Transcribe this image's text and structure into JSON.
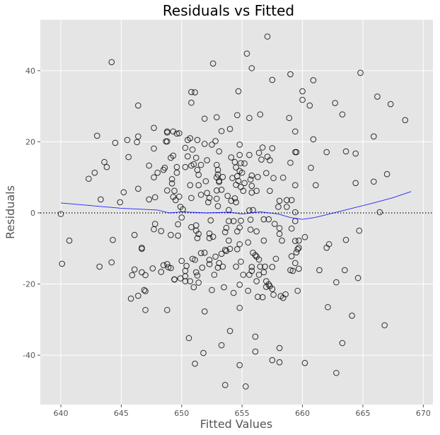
{
  "chart_data": {
    "type": "scatter",
    "title": "Residuals vs Fitted",
    "xlabel": "Fitted Values",
    "ylabel": "Residuals",
    "xlim": [
      638.3,
      670.8
    ],
    "ylim": [
      -53.9,
      54.3
    ],
    "xticks": [
      640,
      645,
      650,
      655,
      660,
      665,
      670
    ],
    "yticks": [
      -40,
      -20,
      0,
      20,
      40
    ],
    "grid": true,
    "colors": {
      "background": "#e5e5e5",
      "grid": "#ffffff",
      "marker_edge": "#000000",
      "smooth_line": "#0000ff",
      "reference_line": "#000000"
    },
    "reference_line": {
      "y": 0,
      "style": "dotted"
    },
    "points": [
      [
        644.2,
        42.4
      ],
      [
        652.6,
        42.0
      ],
      [
        657.1,
        49.6
      ],
      [
        655.4,
        44.8
      ],
      [
        655.8,
        40.7
      ],
      [
        659.0,
        39.0
      ],
      [
        664.8,
        39.4
      ],
      [
        660.9,
        37.3
      ],
      [
        657.5,
        37.4
      ],
      [
        660.0,
        34.2
      ],
      [
        650.8,
        34.0
      ],
      [
        651.1,
        33.9
      ],
      [
        654.7,
        34.2
      ],
      [
        666.2,
        32.7
      ],
      [
        667.3,
        30.6
      ],
      [
        646.4,
        30.2
      ],
      [
        660.0,
        31.8
      ],
      [
        660.6,
        30.2
      ],
      [
        650.8,
        31.0
      ],
      [
        662.7,
        30.9
      ],
      [
        663.3,
        27.7
      ],
      [
        668.5,
        26.1
      ],
      [
        651.9,
        26.5
      ],
      [
        652.9,
        26.9
      ],
      [
        654.6,
        27.5
      ],
      [
        656.5,
        27.7
      ],
      [
        658.9,
        26.7
      ],
      [
        655.6,
        26.7
      ],
      [
        647.7,
        23.9
      ],
      [
        649.3,
        22.9
      ],
      [
        648.8,
        22.9
      ],
      [
        649.6,
        22.3
      ],
      [
        643.0,
        21.7
      ],
      [
        646.4,
        21.5
      ],
      [
        665.9,
        21.5
      ],
      [
        650.5,
        20.5
      ],
      [
        648.8,
        20.1
      ],
      [
        644.5,
        19.7
      ],
      [
        645.5,
        20.5
      ],
      [
        646.3,
        19.9
      ],
      [
        660.9,
        20.7
      ],
      [
        662.0,
        17.1
      ],
      [
        663.6,
        17.3
      ],
      [
        664.4,
        16.7
      ],
      [
        659.4,
        17.1
      ],
      [
        642.8,
        11.3
      ],
      [
        642.3,
        9.6
      ],
      [
        643.8,
        12.9
      ],
      [
        643.6,
        14.3
      ],
      [
        645.6,
        15.7
      ],
      [
        644.9,
        3.0
      ],
      [
        647.3,
        3.8
      ],
      [
        646.4,
        6.8
      ],
      [
        645.2,
        5.8
      ],
      [
        643.3,
        3.8
      ],
      [
        647.7,
        10.0
      ],
      [
        648.5,
        12.1
      ],
      [
        649.6,
        12.9
      ],
      [
        649.3,
        16.1
      ],
      [
        650.3,
        12.9
      ],
      [
        661.1,
        7.8
      ],
      [
        667.0,
        10.9
      ],
      [
        660.7,
        12.7
      ],
      [
        665.9,
        8.8
      ],
      [
        664.4,
        8.4
      ],
      [
        658.1,
        3.4
      ],
      [
        658.7,
        3.6
      ],
      [
        655.8,
        10.5
      ],
      [
        640.0,
        -0.3
      ],
      [
        666.4,
        0.2
      ],
      [
        659.4,
        0.2
      ],
      [
        648.8,
        22.6
      ],
      [
        649.8,
        22.4
      ],
      [
        650.7,
        21.0
      ],
      [
        651.3,
        20.5
      ],
      [
        648.7,
        20.1
      ],
      [
        647.7,
        18.1
      ],
      [
        650.3,
        18.3
      ],
      [
        650.9,
        17.8
      ],
      [
        651.9,
        19.4
      ],
      [
        652.5,
        19.2
      ],
      [
        652.8,
        20.2
      ],
      [
        653.3,
        23.0
      ],
      [
        654.0,
        23.6
      ],
      [
        654.8,
        19.2
      ],
      [
        653.1,
        17.3
      ],
      [
        649.1,
        15.5
      ],
      [
        650.5,
        15.9
      ],
      [
        651.2,
        15.5
      ],
      [
        652.1,
        14.8
      ],
      [
        654.1,
        15.6
      ],
      [
        654.8,
        16.3
      ],
      [
        655.6,
        16.3
      ],
      [
        656.4,
        16.9
      ],
      [
        656.7,
        18.4
      ],
      [
        657.5,
        18.2
      ],
      [
        657.1,
        15.8
      ],
      [
        656.6,
        15.0
      ],
      [
        657.3,
        14.8
      ],
      [
        659.0,
        14.1
      ],
      [
        659.5,
        17.1
      ],
      [
        659.4,
        22.9
      ],
      [
        647.3,
        13.3
      ],
      [
        648.6,
        12.7
      ],
      [
        648.0,
        11.3
      ],
      [
        649.6,
        11.3
      ],
      [
        650.8,
        13.3
      ],
      [
        651.0,
        13.7
      ],
      [
        651.6,
        13.5
      ],
      [
        651.3,
        12.1
      ],
      [
        652.9,
        13.5
      ],
      [
        653.0,
        12.1
      ],
      [
        654.4,
        14.3
      ],
      [
        654.9,
        14.0
      ],
      [
        655.2,
        13.9
      ],
      [
        654.5,
        12.8
      ],
      [
        654.8,
        11.8
      ],
      [
        655.0,
        11.3
      ],
      [
        657.0,
        11.2
      ],
      [
        658.4,
        9.9
      ],
      [
        659.4,
        7.8
      ],
      [
        657.6,
        9.8
      ],
      [
        656.3,
        10.1
      ],
      [
        655.7,
        9.4
      ],
      [
        655.2,
        8.4
      ],
      [
        654.7,
        9.0
      ],
      [
        654.6,
        10.3
      ],
      [
        654.2,
        9.8
      ],
      [
        653.0,
        10.8
      ],
      [
        653.4,
        10.1
      ],
      [
        652.9,
        10.0
      ],
      [
        651.4,
        10.7
      ],
      [
        649.2,
        9.5
      ],
      [
        649.2,
        8.3
      ],
      [
        650.7,
        7.8
      ],
      [
        651.4,
        7.8
      ],
      [
        652.0,
        8.9
      ],
      [
        653.1,
        8.7
      ],
      [
        653.1,
        9.0
      ],
      [
        654.5,
        7.9
      ],
      [
        654.9,
        7.3
      ],
      [
        655.8,
        7.6
      ],
      [
        656.2,
        6.2
      ],
      [
        655.8,
        5.7
      ],
      [
        655.1,
        6.2
      ],
      [
        657.3,
        6.2
      ],
      [
        652.9,
        6.3
      ],
      [
        653.3,
        6.5
      ],
      [
        652.1,
        5.6
      ],
      [
        651.6,
        5.1
      ],
      [
        648.8,
        6.3
      ],
      [
        649.4,
        6.2
      ],
      [
        649.3,
        4.5
      ],
      [
        649.8,
        4.6
      ],
      [
        649.5,
        3.6
      ],
      [
        647.8,
        4.4
      ],
      [
        650.8,
        4.2
      ],
      [
        652.3,
        4.2
      ],
      [
        652.9,
        4.0
      ],
      [
        652.2,
        3.0
      ],
      [
        653.8,
        4.8
      ],
      [
        654.4,
        4.1
      ],
      [
        654.1,
        3.4
      ],
      [
        654.5,
        3.0
      ],
      [
        653.0,
        1.9
      ],
      [
        649.9,
        1.7
      ],
      [
        650.1,
        1.0
      ],
      [
        658.0,
        1.7
      ],
      [
        658.7,
        1.7
      ],
      [
        659.1,
        3.6
      ],
      [
        653.9,
        0.8
      ],
      [
        655.6,
        0.7
      ],
      [
        655.9,
        0.8
      ],
      [
        647.8,
        -3.1
      ],
      [
        647.7,
        -4.6
      ],
      [
        648.3,
        -5.1
      ],
      [
        649.1,
        -6.2
      ],
      [
        649.7,
        -6.4
      ],
      [
        649.7,
        -3.2
      ],
      [
        650.0,
        -1.3
      ],
      [
        650.8,
        -4.0
      ],
      [
        651.2,
        -3.5
      ],
      [
        651.2,
        -5.0
      ],
      [
        651.4,
        -5.9
      ],
      [
        651.3,
        -7.1
      ],
      [
        652.4,
        -2.1
      ],
      [
        652.3,
        -5.8
      ],
      [
        652.6,
        -6.7
      ],
      [
        652.3,
        -7.1
      ],
      [
        653.7,
        -4.2
      ],
      [
        653.6,
        -5.4
      ],
      [
        654.8,
        -4.1
      ],
      [
        654.6,
        -5.2
      ],
      [
        653.9,
        -2.3
      ],
      [
        654.3,
        -2.3
      ],
      [
        654.9,
        -2.2
      ],
      [
        655.7,
        -1.9
      ],
      [
        656.8,
        -1.8
      ],
      [
        657.2,
        -1.8
      ],
      [
        657.7,
        -3.1
      ],
      [
        658.1,
        -4.3
      ],
      [
        658.1,
        -5.9
      ],
      [
        658.3,
        -7.8
      ],
      [
        659.1,
        -4.4
      ],
      [
        659.4,
        -2.3
      ],
      [
        656.2,
        -5.2
      ],
      [
        655.7,
        -4.7
      ],
      [
        656.8,
        -7.8
      ],
      [
        655.5,
        -8.3
      ],
      [
        653.9,
        -7.8
      ],
      [
        654.0,
        -10.1
      ],
      [
        654.6,
        -10.2
      ],
      [
        654.8,
        -8.8
      ],
      [
        653.7,
        -10.7
      ],
      [
        653.3,
        -11.5
      ],
      [
        653.6,
        -10.4
      ],
      [
        652.8,
        -12.3
      ],
      [
        652.3,
        -13.2
      ],
      [
        652.3,
        -14.4
      ],
      [
        653.1,
        -14.1
      ],
      [
        653.0,
        -15.4
      ],
      [
        653.4,
        -15.1
      ],
      [
        651.6,
        -11.3
      ],
      [
        651.9,
        -11.2
      ],
      [
        651.1,
        -13.2
      ],
      [
        650.9,
        -12.9
      ],
      [
        650.0,
        -13.5
      ],
      [
        650.4,
        -14.9
      ],
      [
        650.3,
        -16.3
      ],
      [
        650.3,
        -17.8
      ],
      [
        650.3,
        -19.2
      ],
      [
        650.7,
        -19.2
      ],
      [
        649.9,
        -18.4
      ],
      [
        649.4,
        -18.7
      ],
      [
        651.2,
        -16.7
      ],
      [
        651.3,
        -17.6
      ],
      [
        651.4,
        -19.6
      ],
      [
        651.0,
        -20.9
      ],
      [
        651.7,
        -15.4
      ],
      [
        652.7,
        -17.4
      ],
      [
        653.5,
        -20.9
      ],
      [
        654.8,
        -20.2
      ],
      [
        654.3,
        -22.5
      ],
      [
        654.9,
        -13.7
      ],
      [
        654.5,
        -15.1
      ],
      [
        655.8,
        -15.2
      ],
      [
        655.8,
        -16.3
      ],
      [
        655.6,
        -17.4
      ],
      [
        655.1,
        -17.4
      ],
      [
        656.4,
        -17.4
      ],
      [
        656.8,
        -16.7
      ],
      [
        656.5,
        -15.1
      ],
      [
        656.9,
        -15.1
      ],
      [
        657.5,
        -15.2
      ],
      [
        657.8,
        -12.9
      ],
      [
        656.2,
        -19.2
      ],
      [
        657.0,
        -19.2
      ],
      [
        657.0,
        -20.8
      ],
      [
        657.3,
        -20.6
      ],
      [
        657.5,
        -21.4
      ],
      [
        655.5,
        -21.9
      ],
      [
        656.3,
        -23.6
      ],
      [
        657.6,
        -23.0
      ],
      [
        658.2,
        -23.4
      ],
      [
        658.6,
        -22.9
      ],
      [
        655.9,
        -11.2
      ],
      [
        656.2,
        -12.3
      ],
      [
        656.4,
        -13.1
      ],
      [
        656.1,
        -11.9
      ],
      [
        659.1,
        -12.2
      ],
      [
        659.5,
        -11.1
      ],
      [
        659.6,
        -10.2
      ],
      [
        659.4,
        -14.1
      ],
      [
        659.2,
        -16.3
      ],
      [
        659.7,
        -15.7
      ],
      [
        659.4,
        -7.9
      ],
      [
        659.7,
        -7.8
      ],
      [
        647.0,
        -17.5
      ],
      [
        647.6,
        -15.6
      ],
      [
        648.3,
        -16.6
      ],
      [
        648.5,
        -14.7
      ],
      [
        648.8,
        -14.4
      ],
      [
        649.1,
        -15.5
      ],
      [
        647.0,
        -22.0
      ],
      [
        646.7,
        -10.1
      ],
      [
        640.1,
        -14.3
      ],
      [
        640.7,
        -7.8
      ],
      [
        643.2,
        -15.1
      ],
      [
        644.2,
        -13.9
      ],
      [
        644.3,
        -7.6
      ],
      [
        645.9,
        -17.5
      ],
      [
        645.8,
        -24.1
      ],
      [
        646.1,
        -15.9
      ],
      [
        646.4,
        -23.3
      ],
      [
        646.7,
        -9.8
      ],
      [
        646.1,
        -6.2
      ],
      [
        647.0,
        -27.3
      ],
      [
        646.9,
        -21.7
      ],
      [
        646.7,
        -16.7
      ],
      [
        648.8,
        -27.3
      ],
      [
        648.9,
        -15.3
      ],
      [
        649.4,
        -18.7
      ],
      [
        650.6,
        -35.2
      ],
      [
        651.1,
        -42.4
      ],
      [
        651.8,
        -39.4
      ],
      [
        651.9,
        -27.7
      ],
      [
        652.5,
        -21.7
      ],
      [
        653.3,
        -37.2
      ],
      [
        653.6,
        -48.4
      ],
      [
        654.8,
        -42.8
      ],
      [
        655.3,
        -48.8
      ],
      [
        656.1,
        -34.8
      ],
      [
        656.1,
        -39.0
      ],
      [
        657.5,
        -41.4
      ],
      [
        658.1,
        -42.0
      ],
      [
        658.1,
        -38.0
      ],
      [
        660.2,
        -42.2
      ],
      [
        662.8,
        -45.0
      ],
      [
        663.3,
        -36.6
      ],
      [
        664.1,
        -28.9
      ],
      [
        666.8,
        -31.6
      ],
      [
        662.1,
        -26.5
      ],
      [
        662.8,
        -19.5
      ],
      [
        664.6,
        -18.3
      ],
      [
        663.5,
        -16.1
      ],
      [
        661.4,
        -16.1
      ],
      [
        659.6,
        -21.9
      ],
      [
        664.7,
        -5.0
      ],
      [
        663.6,
        -7.6
      ],
      [
        662.2,
        -8.8
      ],
      [
        662.0,
        -9.8
      ],
      [
        660.2,
        -6.8
      ],
      [
        659.7,
        -9.8
      ],
      [
        659.0,
        -16.1
      ],
      [
        658.4,
        -23.9
      ],
      [
        656.7,
        -23.7
      ],
      [
        654.0,
        -33.2
      ],
      [
        654.8,
        -26.7
      ],
      [
        657.2,
        -20.1
      ]
    ],
    "smooth_line": [
      [
        640,
        2.8
      ],
      [
        642,
        2.2
      ],
      [
        645,
        1.3
      ],
      [
        648,
        0.8
      ],
      [
        649,
        0.0
      ],
      [
        650,
        0.3
      ],
      [
        652,
        0.0
      ],
      [
        654,
        0.2
      ],
      [
        655,
        -0.3
      ],
      [
        656.5,
        0.3
      ],
      [
        658,
        -0.3
      ],
      [
        659,
        -1.3
      ],
      [
        660,
        -1.8
      ],
      [
        661,
        -1.3
      ],
      [
        662,
        -0.5
      ],
      [
        664,
        1.2
      ],
      [
        666,
        2.9
      ],
      [
        667.5,
        4.3
      ],
      [
        669,
        6.0
      ]
    ]
  }
}
